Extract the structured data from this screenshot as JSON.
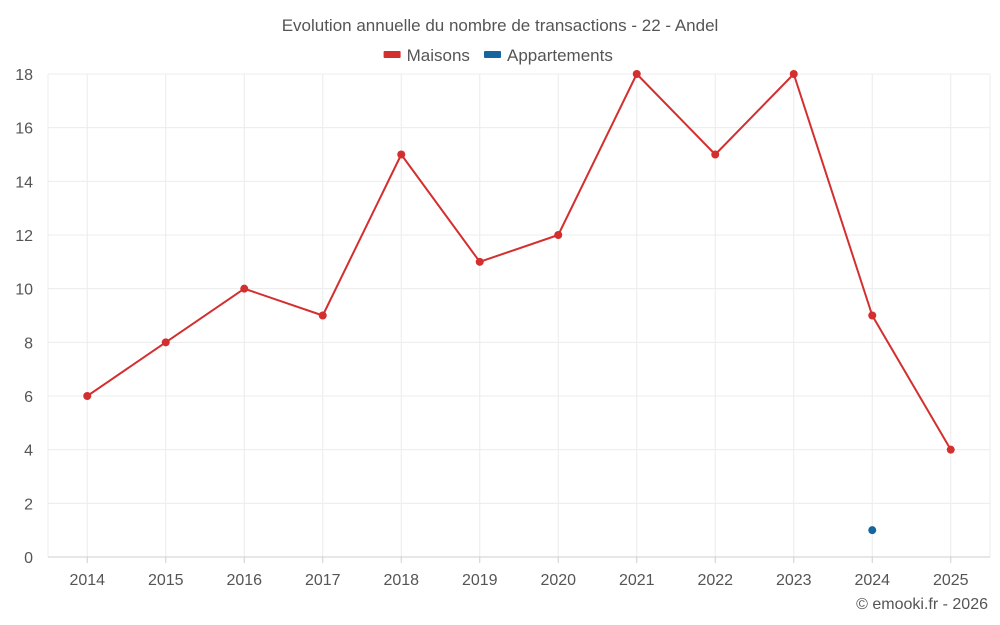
{
  "chart_data": {
    "type": "line",
    "title": "Evolution annuelle du nombre de transactions - 22 - Andel",
    "xlabel": "",
    "ylabel": "",
    "categories": [
      "2014",
      "2015",
      "2016",
      "2017",
      "2018",
      "2019",
      "2020",
      "2021",
      "2022",
      "2023",
      "2024",
      "2025"
    ],
    "ylim": [
      0,
      18
    ],
    "yticks": [
      0,
      2,
      4,
      6,
      8,
      10,
      12,
      14,
      16,
      18
    ],
    "grid": true,
    "legend_position": "top-center",
    "series": [
      {
        "name": "Maisons",
        "color": "#d32f2f",
        "values": [
          6,
          8,
          10,
          9,
          15,
          11,
          12,
          18,
          15,
          18,
          9,
          4
        ]
      },
      {
        "name": "Appartements",
        "color": "#1565a0",
        "values": [
          null,
          null,
          null,
          null,
          null,
          null,
          null,
          null,
          null,
          null,
          1,
          null
        ]
      }
    ],
    "credit": "© emooki.fr - 2026"
  }
}
